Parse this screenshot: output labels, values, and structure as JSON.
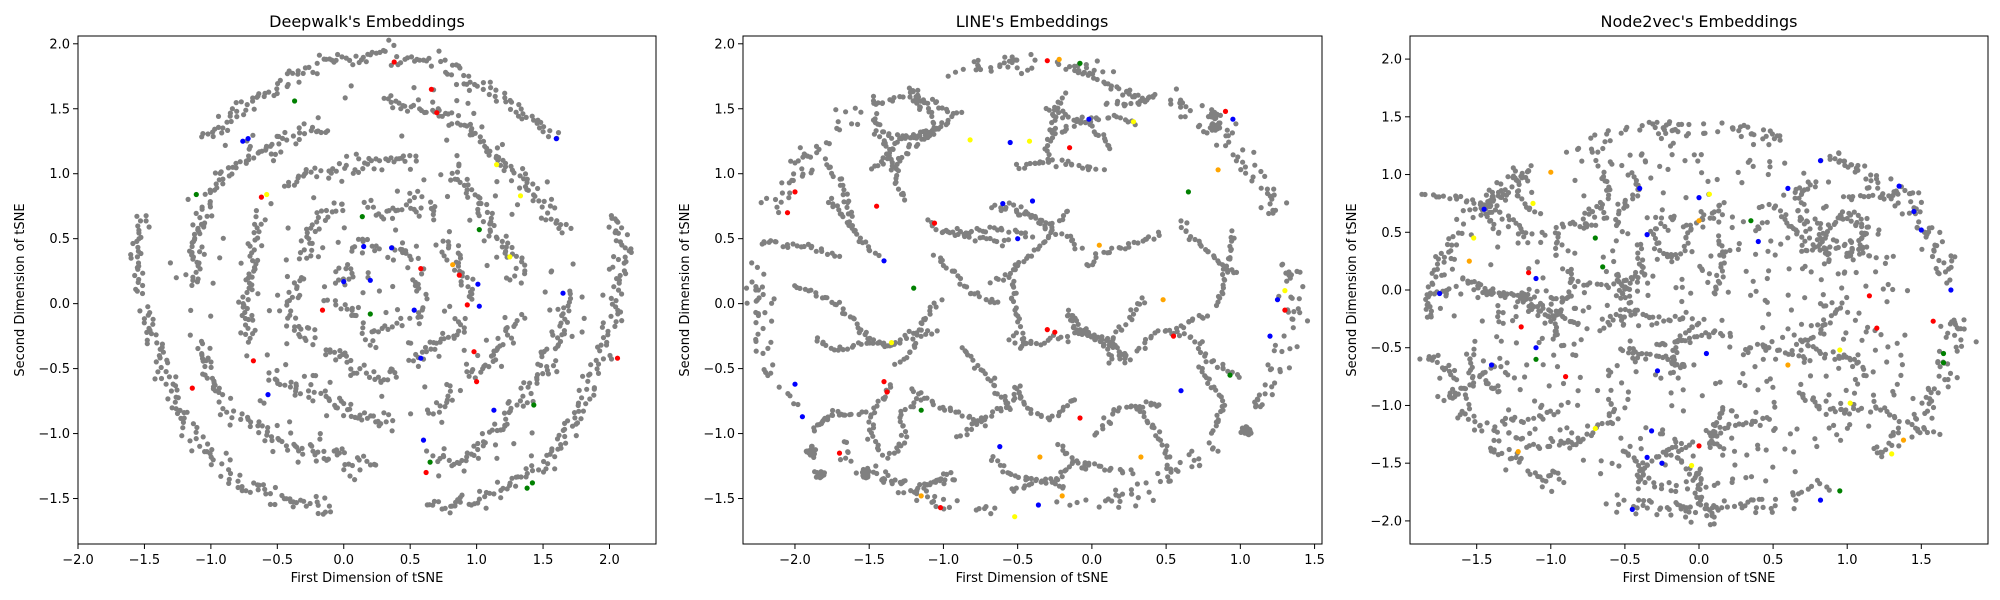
{
  "chart_data": [
    {
      "type": "scatter",
      "title": "Deepwalk's Embeddings",
      "xlabel": "First Dimension of tSNE",
      "ylabel": "Second Dimension of tSNE",
      "xlim": [
        -2.0,
        2.35
      ],
      "ylim": [
        -1.85,
        2.06
      ],
      "xticks": [
        -2.0,
        -1.5,
        -1.0,
        -0.5,
        0.0,
        0.5,
        1.0,
        1.5,
        2.0
      ],
      "yticks": [
        -1.5,
        -1.0,
        -0.5,
        0.0,
        0.5,
        1.0,
        1.5,
        2.0
      ],
      "xtick_labels": [
        "−2.0",
        "−1.5",
        "−1.0",
        "−0.5",
        "0.0",
        "0.5",
        "1.0",
        "1.5",
        "2.0"
      ],
      "ytick_labels": [
        "−1.5",
        "−1.0",
        "−0.5",
        "0.0",
        "0.5",
        "1.0",
        "1.5",
        "2.0"
      ],
      "grid": false,
      "layout": "rings",
      "base_color": "#808080",
      "point_count": 1600,
      "seed": 11,
      "points_highlight": [
        {
          "x": 0.38,
          "y": 1.86,
          "c": "#ff0000"
        },
        {
          "x": 0.66,
          "y": 1.65,
          "c": "#ff0000"
        },
        {
          "x": 0.7,
          "y": 1.47,
          "c": "#ff0000"
        },
        {
          "x": -0.37,
          "y": 1.56,
          "c": "#008000"
        },
        {
          "x": -0.72,
          "y": 1.27,
          "c": "#0000ff"
        },
        {
          "x": -0.76,
          "y": 1.25,
          "c": "#0000ff"
        },
        {
          "x": 1.6,
          "y": 1.27,
          "c": "#0000ff"
        },
        {
          "x": 1.15,
          "y": 1.07,
          "c": "#ffff00"
        },
        {
          "x": 1.33,
          "y": 0.83,
          "c": "#ffff00"
        },
        {
          "x": -1.11,
          "y": 0.84,
          "c": "#008000"
        },
        {
          "x": -0.58,
          "y": 0.84,
          "c": "#ffff00"
        },
        {
          "x": -0.62,
          "y": 0.82,
          "c": "#ff0000"
        },
        {
          "x": 0.14,
          "y": 0.67,
          "c": "#008000"
        },
        {
          "x": 0.15,
          "y": 0.44,
          "c": "#0000ff"
        },
        {
          "x": 0.36,
          "y": 0.43,
          "c": "#0000ff"
        },
        {
          "x": 1.02,
          "y": 0.57,
          "c": "#008000"
        },
        {
          "x": 1.25,
          "y": 0.36,
          "c": "#ffff00"
        },
        {
          "x": 0.82,
          "y": 0.3,
          "c": "#ffa500"
        },
        {
          "x": 0.87,
          "y": 0.22,
          "c": "#ff0000"
        },
        {
          "x": 0.58,
          "y": 0.27,
          "c": "#ff0000"
        },
        {
          "x": 0.0,
          "y": 0.17,
          "c": "#0000ff"
        },
        {
          "x": 0.2,
          "y": 0.18,
          "c": "#0000ff"
        },
        {
          "x": 1.01,
          "y": 0.15,
          "c": "#0000ff"
        },
        {
          "x": 1.02,
          "y": -0.02,
          "c": "#0000ff"
        },
        {
          "x": 0.93,
          "y": -0.01,
          "c": "#ff0000"
        },
        {
          "x": 1.65,
          "y": 0.08,
          "c": "#0000ff"
        },
        {
          "x": -0.16,
          "y": -0.05,
          "c": "#ff0000"
        },
        {
          "x": 0.2,
          "y": -0.08,
          "c": "#008000"
        },
        {
          "x": 0.53,
          "y": -0.05,
          "c": "#0000ff"
        },
        {
          "x": 0.58,
          "y": -0.42,
          "c": "#0000ff"
        },
        {
          "x": -0.68,
          "y": -0.44,
          "c": "#ff0000"
        },
        {
          "x": 0.98,
          "y": -0.37,
          "c": "#ff0000"
        },
        {
          "x": 2.06,
          "y": -0.42,
          "c": "#ff0000"
        },
        {
          "x": -1.14,
          "y": -0.65,
          "c": "#ff0000"
        },
        {
          "x": -0.57,
          "y": -0.7,
          "c": "#0000ff"
        },
        {
          "x": 1.0,
          "y": -0.6,
          "c": "#ff0000"
        },
        {
          "x": 1.13,
          "y": -0.82,
          "c": "#0000ff"
        },
        {
          "x": 1.43,
          "y": -0.78,
          "c": "#008000"
        },
        {
          "x": 0.6,
          "y": -1.05,
          "c": "#0000ff"
        },
        {
          "x": 0.65,
          "y": -1.22,
          "c": "#008000"
        },
        {
          "x": 0.62,
          "y": -1.3,
          "c": "#ff0000"
        },
        {
          "x": 1.38,
          "y": -1.42,
          "c": "#008000"
        },
        {
          "x": 1.42,
          "y": -1.38,
          "c": "#008000"
        }
      ]
    },
    {
      "type": "scatter",
      "title": "LINE's Embeddings",
      "xlabel": "First Dimension of tSNE",
      "ylabel": "Second Dimension of tSNE",
      "xlim": [
        -2.35,
        1.55
      ],
      "ylim": [
        -1.85,
        2.06
      ],
      "xticks": [
        -2.0,
        -1.5,
        -1.0,
        -0.5,
        0.0,
        0.5,
        1.0,
        1.5
      ],
      "yticks": [
        -1.5,
        -1.0,
        -0.5,
        0.0,
        0.5,
        1.0,
        1.5,
        2.0
      ],
      "xtick_labels": [
        "−2.0",
        "−1.5",
        "−1.0",
        "−0.5",
        "0.0",
        "0.5",
        "1.0",
        "1.5"
      ],
      "ytick_labels": [
        "−1.5",
        "−1.0",
        "−0.5",
        "0.0",
        "0.5",
        "1.0",
        "1.5",
        "2.0"
      ],
      "grid": false,
      "layout": "worms",
      "base_color": "#808080",
      "point_count": 1750,
      "seed": 23,
      "points_highlight": [
        {
          "x": -0.3,
          "y": 1.87,
          "c": "#ff0000"
        },
        {
          "x": -0.08,
          "y": 1.85,
          "c": "#008000"
        },
        {
          "x": -0.22,
          "y": 1.88,
          "c": "#ffa500"
        },
        {
          "x": 0.9,
          "y": 1.48,
          "c": "#ff0000"
        },
        {
          "x": 0.95,
          "y": 1.42,
          "c": "#0000ff"
        },
        {
          "x": -0.02,
          "y": 1.42,
          "c": "#0000ff"
        },
        {
          "x": 0.28,
          "y": 1.4,
          "c": "#ffff00"
        },
        {
          "x": -0.82,
          "y": 1.26,
          "c": "#ffff00"
        },
        {
          "x": -0.55,
          "y": 1.24,
          "c": "#0000ff"
        },
        {
          "x": -0.42,
          "y": 1.25,
          "c": "#ffff00"
        },
        {
          "x": -0.15,
          "y": 1.2,
          "c": "#ff0000"
        },
        {
          "x": 0.65,
          "y": 0.86,
          "c": "#008000"
        },
        {
          "x": 0.85,
          "y": 1.03,
          "c": "#ffa500"
        },
        {
          "x": -2.0,
          "y": 0.86,
          "c": "#ff0000"
        },
        {
          "x": -2.05,
          "y": 0.7,
          "c": "#ff0000"
        },
        {
          "x": -1.45,
          "y": 0.75,
          "c": "#ff0000"
        },
        {
          "x": -1.06,
          "y": 0.62,
          "c": "#ff0000"
        },
        {
          "x": -0.6,
          "y": 0.77,
          "c": "#0000ff"
        },
        {
          "x": -0.4,
          "y": 0.79,
          "c": "#0000ff"
        },
        {
          "x": -0.5,
          "y": 0.5,
          "c": "#0000ff"
        },
        {
          "x": 0.05,
          "y": 0.45,
          "c": "#ffa500"
        },
        {
          "x": -1.4,
          "y": 0.33,
          "c": "#0000ff"
        },
        {
          "x": -1.2,
          "y": 0.12,
          "c": "#008000"
        },
        {
          "x": -1.35,
          "y": -0.3,
          "c": "#ffff00"
        },
        {
          "x": 0.48,
          "y": 0.03,
          "c": "#ffa500"
        },
        {
          "x": 1.3,
          "y": 0.1,
          "c": "#ffff00"
        },
        {
          "x": 1.25,
          "y": 0.03,
          "c": "#0000ff"
        },
        {
          "x": 1.3,
          "y": -0.05,
          "c": "#ff0000"
        },
        {
          "x": 1.2,
          "y": -0.25,
          "c": "#0000ff"
        },
        {
          "x": -0.3,
          "y": -0.2,
          "c": "#ff0000"
        },
        {
          "x": -0.25,
          "y": -0.22,
          "c": "#ff0000"
        },
        {
          "x": 0.55,
          "y": -0.25,
          "c": "#ff0000"
        },
        {
          "x": -1.4,
          "y": -0.6,
          "c": "#ff0000"
        },
        {
          "x": -1.38,
          "y": -0.68,
          "c": "#ff0000"
        },
        {
          "x": -1.15,
          "y": -0.82,
          "c": "#008000"
        },
        {
          "x": -2.0,
          "y": -0.62,
          "c": "#0000ff"
        },
        {
          "x": -1.95,
          "y": -0.87,
          "c": "#0000ff"
        },
        {
          "x": -0.08,
          "y": -0.88,
          "c": "#ff0000"
        },
        {
          "x": 0.6,
          "y": -0.67,
          "c": "#0000ff"
        },
        {
          "x": 0.93,
          "y": -0.55,
          "c": "#008000"
        },
        {
          "x": -0.62,
          "y": -1.1,
          "c": "#0000ff"
        },
        {
          "x": -0.35,
          "y": -1.18,
          "c": "#ffa500"
        },
        {
          "x": 0.33,
          "y": -1.18,
          "c": "#ffa500"
        },
        {
          "x": -1.7,
          "y": -1.15,
          "c": "#ff0000"
        },
        {
          "x": -1.02,
          "y": -1.57,
          "c": "#ff0000"
        },
        {
          "x": -1.15,
          "y": -1.48,
          "c": "#ffa500"
        },
        {
          "x": -0.52,
          "y": -1.64,
          "c": "#ffff00"
        },
        {
          "x": -0.36,
          "y": -1.55,
          "c": "#0000ff"
        },
        {
          "x": -0.2,
          "y": -1.48,
          "c": "#ffa500"
        }
      ]
    },
    {
      "type": "scatter",
      "title": "Node2vec's Embeddings",
      "xlabel": "First Dimension of tSNE",
      "ylabel": "Second Dimension of tSNE",
      "xlim": [
        -1.95,
        1.95
      ],
      "ylim": [
        -2.2,
        2.2
      ],
      "xticks": [
        -1.5,
        -1.0,
        -0.5,
        0.0,
        0.5,
        1.0,
        1.5
      ],
      "yticks": [
        -2.0,
        -1.5,
        -1.0,
        -0.5,
        0.0,
        0.5,
        1.0,
        1.5,
        2.0
      ],
      "xtick_labels": [
        "−1.5",
        "−1.0",
        "−0.5",
        "0.0",
        "0.5",
        "1.0",
        "1.5"
      ],
      "ytick_labels": [
        "−2.0",
        "−1.5",
        "−1.0",
        "−0.5",
        "0.0",
        "0.5",
        "1.0",
        "1.5",
        "2.0"
      ],
      "grid": false,
      "layout": "filled",
      "base_color": "#808080",
      "point_count": 1900,
      "seed": 37,
      "points_highlight": [
        {
          "x": 0.07,
          "y": 0.83,
          "c": "#ffff00"
        },
        {
          "x": 0.0,
          "y": 0.8,
          "c": "#0000ff"
        },
        {
          "x": 0.82,
          "y": 1.12,
          "c": "#0000ff"
        },
        {
          "x": -0.4,
          "y": 0.88,
          "c": "#0000ff"
        },
        {
          "x": -1.0,
          "y": 1.02,
          "c": "#ffa500"
        },
        {
          "x": -1.12,
          "y": 0.75,
          "c": "#ffff00"
        },
        {
          "x": -1.45,
          "y": 0.7,
          "c": "#0000ff"
        },
        {
          "x": -1.52,
          "y": 0.45,
          "c": "#ffff00"
        },
        {
          "x": -1.55,
          "y": 0.25,
          "c": "#ffa500"
        },
        {
          "x": -1.75,
          "y": -0.03,
          "c": "#0000ff"
        },
        {
          "x": -0.7,
          "y": 0.45,
          "c": "#008000"
        },
        {
          "x": -0.65,
          "y": 0.2,
          "c": "#008000"
        },
        {
          "x": -1.15,
          "y": 0.15,
          "c": "#ff0000"
        },
        {
          "x": -1.1,
          "y": 0.1,
          "c": "#0000ff"
        },
        {
          "x": 0.6,
          "y": 0.88,
          "c": "#0000ff"
        },
        {
          "x": 1.35,
          "y": 0.9,
          "c": "#0000ff"
        },
        {
          "x": 1.45,
          "y": 0.68,
          "c": "#0000ff"
        },
        {
          "x": 1.5,
          "y": 0.52,
          "c": "#0000ff"
        },
        {
          "x": 0.35,
          "y": 0.6,
          "c": "#008000"
        },
        {
          "x": 0.0,
          "y": 0.6,
          "c": "#ffa500"
        },
        {
          "x": -0.35,
          "y": 0.48,
          "c": "#0000ff"
        },
        {
          "x": 0.4,
          "y": 0.42,
          "c": "#0000ff"
        },
        {
          "x": 1.7,
          "y": 0.0,
          "c": "#0000ff"
        },
        {
          "x": 1.65,
          "y": -0.55,
          "c": "#008000"
        },
        {
          "x": 1.65,
          "y": -0.63,
          "c": "#008000"
        },
        {
          "x": 1.58,
          "y": -0.27,
          "c": "#ff0000"
        },
        {
          "x": 1.2,
          "y": -0.33,
          "c": "#ff0000"
        },
        {
          "x": 1.15,
          "y": -0.05,
          "c": "#ff0000"
        },
        {
          "x": -1.4,
          "y": -0.65,
          "c": "#0000ff"
        },
        {
          "x": -1.1,
          "y": -0.5,
          "c": "#0000ff"
        },
        {
          "x": -1.1,
          "y": -0.6,
          "c": "#008000"
        },
        {
          "x": -1.2,
          "y": -0.32,
          "c": "#ff0000"
        },
        {
          "x": -0.9,
          "y": -0.75,
          "c": "#ff0000"
        },
        {
          "x": -0.28,
          "y": -0.7,
          "c": "#0000ff"
        },
        {
          "x": 0.05,
          "y": -0.55,
          "c": "#0000ff"
        },
        {
          "x": 0.6,
          "y": -0.65,
          "c": "#ffa500"
        },
        {
          "x": 0.95,
          "y": -0.52,
          "c": "#ffff00"
        },
        {
          "x": 1.02,
          "y": -0.98,
          "c": "#ffff00"
        },
        {
          "x": -0.7,
          "y": -1.2,
          "c": "#ffff00"
        },
        {
          "x": -0.35,
          "y": -1.45,
          "c": "#0000ff"
        },
        {
          "x": -0.32,
          "y": -1.22,
          "c": "#0000ff"
        },
        {
          "x": -0.25,
          "y": -1.5,
          "c": "#0000ff"
        },
        {
          "x": -0.05,
          "y": -1.52,
          "c": "#ffff00"
        },
        {
          "x": 0.0,
          "y": -1.35,
          "c": "#ff0000"
        },
        {
          "x": 0.82,
          "y": -1.82,
          "c": "#0000ff"
        },
        {
          "x": 0.95,
          "y": -1.74,
          "c": "#008000"
        },
        {
          "x": 1.3,
          "y": -1.42,
          "c": "#ffff00"
        },
        {
          "x": 1.38,
          "y": -1.3,
          "c": "#ffa500"
        },
        {
          "x": -0.45,
          "y": -1.9,
          "c": "#0000ff"
        },
        {
          "x": -1.22,
          "y": -1.4,
          "c": "#ffa500"
        }
      ]
    }
  ]
}
